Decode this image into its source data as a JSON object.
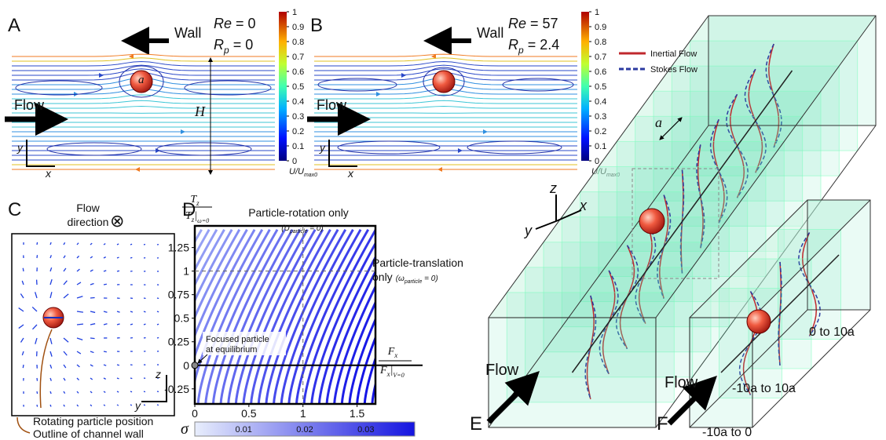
{
  "panel_a": {
    "label": "A",
    "wall": "Wall",
    "re_symbol": "Re",
    "re_value": " = 0",
    "rp_symbol": "R",
    "rp_sub": "p",
    "rp_value": " = 0",
    "flow": "Flow",
    "particle_radius": "a",
    "height": "H",
    "axis_x": "x",
    "axis_y": "y"
  },
  "panel_b": {
    "label": "B",
    "wall": "Wall",
    "re_symbol": "Re",
    "re_value": " = 57",
    "rp_symbol": "R",
    "rp_sub": "p",
    "rp_value": " = 2.4",
    "flow": "Flow",
    "axis_x": "x",
    "axis_y": "y"
  },
  "velocity_colorbar": {
    "lim": [
      0,
      1
    ],
    "ticks": [
      0,
      0.1,
      0.2,
      0.3,
      0.4,
      0.5,
      0.6,
      0.7,
      0.8,
      0.9,
      1
    ],
    "label_base": "U/U",
    "label_sub": "max0"
  },
  "panel_c": {
    "label": "C",
    "title_line1": "Flow",
    "title_line2": "direction",
    "symbol": "⊗",
    "axis_z": "z",
    "axis_y": "y",
    "note_particle": "Rotating particle position",
    "note_wall": "Outline of channel wall"
  },
  "panel_d": {
    "label": "D",
    "y_num": "T",
    "y_num_sub": "z",
    "y_den": "T",
    "y_den_sub": "z",
    "y_den_bar": "|",
    "y_den_cond": "ω=0",
    "x_num": "F",
    "x_num_sub": "x",
    "x_den": "F",
    "x_den_sub": "x",
    "x_den_bar": "|",
    "x_den_cond": "V=0",
    "rotation_only": "Particle-rotation only",
    "rotation_open": "(U",
    "rotation_sub": "particle",
    "rotation_close": " = 0)",
    "translation_line1": "Particle-translation",
    "translation_line2": "only",
    "translation_open": "(ω",
    "translation_sub": "particle",
    "translation_close": " = 0)",
    "focused_line1": "Focused particle",
    "focused_line2": "at equilibrium",
    "xlim": [
      0,
      1.67
    ],
    "ylim": [
      -0.41,
      1.48
    ],
    "xticks": [
      0,
      0.5,
      1,
      1.5
    ],
    "yticks": [
      -0.25,
      0,
      0.25,
      0.5,
      0.75,
      1,
      1.25
    ],
    "sigma": "σ",
    "sigma_lim": [
      0.002,
      0.038
    ],
    "sigma_ticks": [
      0.01,
      0.02,
      0.03
    ]
  },
  "panel_e": {
    "label": "E",
    "flow": "Flow",
    "spacing": "a",
    "axis_x": "x",
    "axis_y": "y",
    "axis_z": "z",
    "legend": [
      {
        "name": "Inertial Flow",
        "color": "#c0282d"
      },
      {
        "name": "Stokes Flow",
        "color": "#2b3aa0"
      }
    ]
  },
  "panel_f": {
    "label": "F",
    "flow": "Flow",
    "range_1": "0 to 10a",
    "range_2": "-10a to 10a",
    "range_3": "-10a to 0"
  }
}
